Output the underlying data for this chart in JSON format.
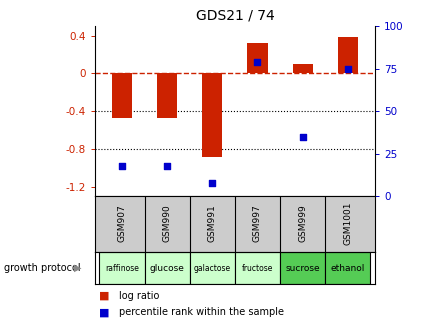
{
  "title": "GDS21 / 74",
  "samples": [
    "GSM907",
    "GSM990",
    "GSM991",
    "GSM997",
    "GSM999",
    "GSM1001"
  ],
  "protocols": [
    "raffinose",
    "glucose",
    "galactose",
    "fructose",
    "sucrose",
    "ethanol"
  ],
  "log_ratio": [
    -0.47,
    -0.47,
    -0.88,
    0.32,
    0.1,
    0.38
  ],
  "percentile_rank": [
    18,
    18,
    8,
    79,
    35,
    75
  ],
  "bar_color": "#cc2200",
  "dot_color": "#0000cc",
  "ylim_left": [
    -1.3,
    0.5
  ],
  "ylim_right": [
    0,
    100
  ],
  "yticks_left": [
    -1.2,
    -0.8,
    -0.4,
    0.0,
    0.4
  ],
  "yticks_right": [
    0,
    25,
    50,
    75,
    100
  ],
  "hline_y": 0.0,
  "hline_color": "#cc2200",
  "dotted_lines": [
    -0.4,
    -0.8
  ],
  "protocol_colors": [
    "#ccffcc",
    "#ccffcc",
    "#ccffcc",
    "#ccffcc",
    "#55cc55",
    "#55cc55"
  ],
  "gsm_bg": "#cccccc",
  "background_color": "#ffffff",
  "bar_width": 0.45
}
